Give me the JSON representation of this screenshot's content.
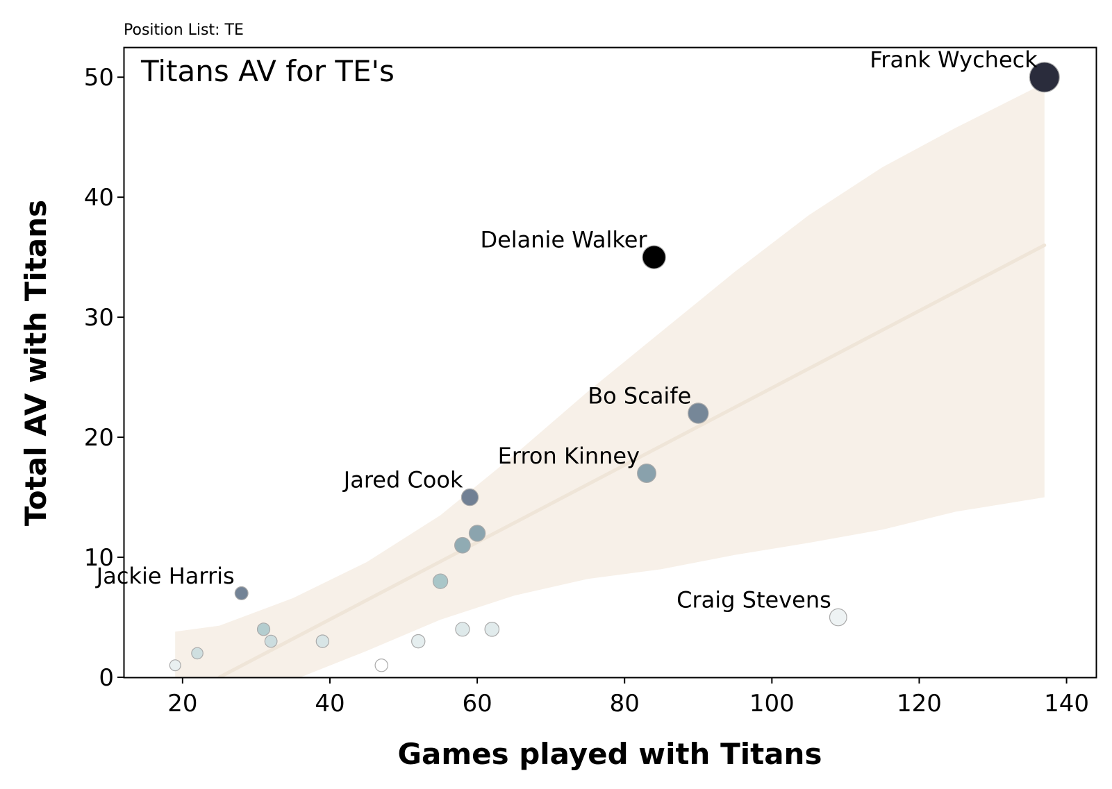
{
  "chart_data": {
    "type": "scatter",
    "suptitle": "Position List: TE",
    "title": "Titans AV for TE's",
    "xlabel": "Games played with Titans",
    "ylabel": "Total AV with Titans",
    "xlim": [
      12,
      144
    ],
    "ylim": [
      0,
      52.5
    ],
    "xticks": [
      20,
      40,
      60,
      80,
      100,
      120,
      140
    ],
    "yticks": [
      0,
      10,
      20,
      30,
      40,
      50
    ],
    "grid": false,
    "points": [
      {
        "x": 137,
        "y": 50,
        "label": "Frank Wycheck",
        "av_per_game": 0.365
      },
      {
        "x": 84,
        "y": 35,
        "label": "Delanie Walker",
        "av_per_game": 0.417
      },
      {
        "x": 90,
        "y": 22,
        "label": "Bo Scaife",
        "av_per_game": 0.244
      },
      {
        "x": 83,
        "y": 17,
        "label": "Erron Kinney",
        "av_per_game": 0.205
      },
      {
        "x": 59,
        "y": 15,
        "label": "Jared Cook",
        "av_per_game": 0.254
      },
      {
        "x": 28,
        "y": 7,
        "label": "Jackie Harris",
        "av_per_game": 0.25
      },
      {
        "x": 109,
        "y": 5,
        "label": "Craig Stevens",
        "av_per_game": 0.046
      },
      {
        "x": 60,
        "y": 12,
        "label": "",
        "av_per_game": 0.2
      },
      {
        "x": 58,
        "y": 11,
        "label": "",
        "av_per_game": 0.19
      },
      {
        "x": 55,
        "y": 8,
        "label": "",
        "av_per_game": 0.145
      },
      {
        "x": 31,
        "y": 4,
        "label": "",
        "av_per_game": 0.129
      },
      {
        "x": 32,
        "y": 3,
        "label": "",
        "av_per_game": 0.094
      },
      {
        "x": 22,
        "y": 2,
        "label": "",
        "av_per_game": 0.091
      },
      {
        "x": 19,
        "y": 1,
        "label": "",
        "av_per_game": 0.053
      },
      {
        "x": 39,
        "y": 3,
        "label": "",
        "av_per_game": 0.077
      },
      {
        "x": 47,
        "y": 1,
        "label": "",
        "av_per_game": 0.021
      },
      {
        "x": 52,
        "y": 3,
        "label": "",
        "av_per_game": 0.058
      },
      {
        "x": 58,
        "y": 4,
        "label": "",
        "av_per_game": 0.069
      },
      {
        "x": 62,
        "y": 4,
        "label": "",
        "av_per_game": 0.065
      }
    ],
    "regression": {
      "line": [
        [
          25,
          0
        ],
        [
          137,
          36
        ]
      ],
      "ci_upper": [
        [
          19,
          3.8
        ],
        [
          25,
          4.3
        ],
        [
          35,
          6.6
        ],
        [
          45,
          9.6
        ],
        [
          55,
          13.5
        ],
        [
          65,
          18.5
        ],
        [
          75,
          23.8
        ],
        [
          85,
          28.8
        ],
        [
          95,
          33.8
        ],
        [
          105,
          38.5
        ],
        [
          115,
          42.5
        ],
        [
          125,
          45.8
        ],
        [
          137,
          49.5
        ]
      ],
      "ci_lower": [
        [
          137,
          15
        ],
        [
          125,
          13.8
        ],
        [
          115,
          12.3
        ],
        [
          105,
          11.2
        ],
        [
          95,
          10.2
        ],
        [
          85,
          9.0
        ],
        [
          75,
          8.2
        ],
        [
          65,
          6.8
        ],
        [
          55,
          4.8
        ],
        [
          45,
          2.2
        ],
        [
          36,
          0
        ]
      ],
      "ci_lower_start": [
        25,
        0
      ],
      "color": "#efe5d8",
      "band_color": "#f7f0e8"
    },
    "colormap": {
      "low": "#ffffff",
      "mid": "#9fbfc2",
      "high": "#000000"
    }
  }
}
